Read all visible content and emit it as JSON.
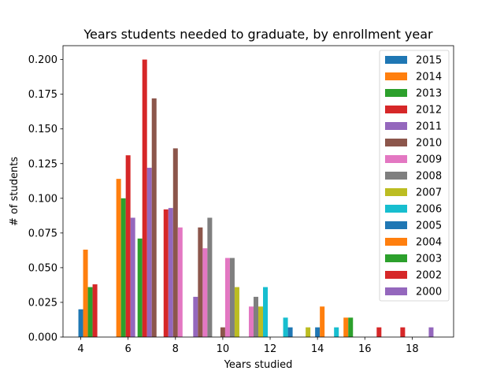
{
  "chart_data": {
    "type": "bar",
    "title": "Years students needed to graduate, by enrollment year",
    "xlabel": "Years studied",
    "ylabel": "# of students",
    "xlim": [
      3.25,
      19.75
    ],
    "ylim": [
      0,
      0.21
    ],
    "x_ticks": [
      4,
      6,
      8,
      10,
      12,
      14,
      16,
      18
    ],
    "y_ticks": [
      "0.000",
      "0.025",
      "0.050",
      "0.075",
      "0.100",
      "0.125",
      "0.150",
      "0.175",
      "0.200"
    ],
    "grid": false,
    "legend_position": "upper right",
    "bar_width": 0.2,
    "series": [
      {
        "name": "2015",
        "color": "#1f77b4",
        "points": [
          [
            4.0,
            0.02
          ],
          [
            12.85,
            0.007
          ],
          [
            14.0,
            0.007
          ]
        ]
      },
      {
        "name": "2014",
        "color": "#ff7f0e",
        "points": [
          [
            4.2,
            0.063
          ],
          [
            5.6,
            0.114
          ],
          [
            14.2,
            0.022
          ],
          [
            15.2,
            0.014
          ]
        ]
      },
      {
        "name": "2013",
        "color": "#2ca02c",
        "points": [
          [
            4.4,
            0.036
          ],
          [
            5.8,
            0.1
          ],
          [
            6.5,
            0.071
          ],
          [
            15.4,
            0.014
          ]
        ]
      },
      {
        "name": "2012",
        "color": "#d62728",
        "points": [
          [
            4.6,
            0.038
          ],
          [
            6.0,
            0.131
          ],
          [
            6.7,
            0.2
          ],
          [
            7.6,
            0.092
          ],
          [
            16.6,
            0.007
          ],
          [
            17.6,
            0.007
          ]
        ]
      },
      {
        "name": "2011",
        "color": "#9467bd",
        "points": [
          [
            6.2,
            0.086
          ],
          [
            6.9,
            0.122
          ],
          [
            7.8,
            0.093
          ],
          [
            8.85,
            0.029
          ],
          [
            18.8,
            0.007
          ]
        ]
      },
      {
        "name": "2010",
        "color": "#8c564b",
        "points": [
          [
            7.1,
            0.172
          ],
          [
            8.0,
            0.136
          ],
          [
            9.05,
            0.079
          ],
          [
            10.0,
            0.007
          ]
        ]
      },
      {
        "name": "2009",
        "color": "#e377c2",
        "points": [
          [
            8.2,
            0.079
          ],
          [
            9.25,
            0.064
          ],
          [
            10.2,
            0.057
          ],
          [
            11.2,
            0.022
          ]
        ]
      },
      {
        "name": "2008",
        "color": "#7f7f7f",
        "points": [
          [
            9.45,
            0.086
          ],
          [
            10.4,
            0.057
          ],
          [
            11.4,
            0.029
          ],
          [
            12.65,
            0.0
          ]
        ]
      },
      {
        "name": "2007",
        "color": "#bcbd22",
        "points": [
          [
            10.6,
            0.036
          ],
          [
            11.6,
            0.022
          ],
          [
            13.6,
            0.007
          ]
        ]
      },
      {
        "name": "2006",
        "color": "#17becf",
        "points": [
          [
            11.8,
            0.036
          ],
          [
            12.65,
            0.014
          ],
          [
            14.8,
            0.007
          ]
        ]
      },
      {
        "name": "2005",
        "color": "#1f77b4",
        "points": []
      },
      {
        "name": "2004",
        "color": "#ff7f0e",
        "points": []
      },
      {
        "name": "2003",
        "color": "#2ca02c",
        "points": []
      },
      {
        "name": "2002",
        "color": "#d62728",
        "points": []
      },
      {
        "name": "2000",
        "color": "#9467bd",
        "points": []
      }
    ]
  }
}
